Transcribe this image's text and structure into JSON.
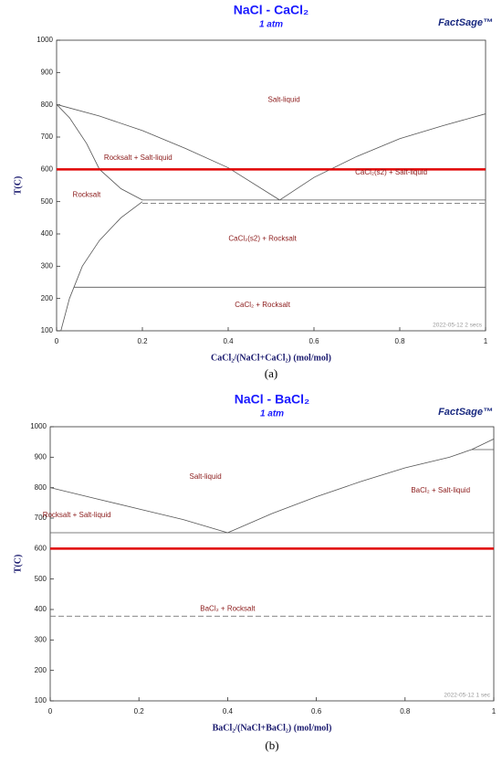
{
  "chart_data": [
    {
      "type": "line",
      "title": "NaCl - CaCl₂",
      "subtitle": "1 atm",
      "logo": "FactSage™",
      "xlabel": "CaCl₂/(NaCl+CaCl₂) (mol/mol)",
      "ylabel": "T(C)",
      "caption": "(a)",
      "timestamp": "2022-05-12  2 secs",
      "xlim": [
        0,
        1
      ],
      "ylim": [
        100,
        1000
      ],
      "xticks": [
        0,
        0.2,
        0.4,
        0.6,
        0.8,
        1
      ],
      "yticks": [
        100,
        200,
        300,
        400,
        500,
        600,
        700,
        800,
        900,
        1000
      ],
      "series": [
        {
          "color": "#555555",
          "style": "solid",
          "linewidth": 0.8,
          "x": [
            0,
            0.1,
            0.2,
            0.3,
            0.4,
            0.52
          ],
          "values": [
            801,
            765,
            720,
            665,
            605,
            505
          ]
        },
        {
          "color": "#555555",
          "style": "solid",
          "linewidth": 0.8,
          "x": [
            0.52,
            0.6,
            0.7,
            0.8,
            0.9,
            1
          ],
          "values": [
            505,
            575,
            640,
            695,
            735,
            772
          ]
        },
        {
          "color": "#555555",
          "style": "solid",
          "linewidth": 0.8,
          "x": [
            0,
            0.03,
            0.07,
            0.1,
            0.15,
            0.2
          ],
          "values": [
            801,
            760,
            680,
            600,
            540,
            505
          ]
        },
        {
          "color": "#555555",
          "style": "solid",
          "linewidth": 0.8,
          "x": [
            0.01,
            0.03,
            0.06,
            0.1,
            0.15,
            0.2
          ],
          "values": [
            100,
            200,
            300,
            380,
            450,
            500
          ]
        },
        {
          "color": "#555555",
          "style": "solid",
          "linewidth": 0.8,
          "x": [
            0.2,
            1
          ],
          "values": [
            505,
            505
          ]
        },
        {
          "color": "#777777",
          "style": "dashed",
          "linewidth": 0.8,
          "x": [
            0.2,
            1
          ],
          "values": [
            495,
            495
          ]
        },
        {
          "color": "#555555",
          "style": "solid",
          "linewidth": 0.8,
          "x": [
            0.04,
            1
          ],
          "values": [
            235,
            235
          ]
        },
        {
          "color": "#e00000",
          "style": "solid",
          "linewidth": 2.5,
          "x": [
            0,
            1
          ],
          "values": [
            600,
            600
          ]
        }
      ],
      "annotations": [
        "Salt-liquid",
        "Rocksalt + Salt-liquid",
        "CaCl₂(s2) + Salt-liquid",
        "Rocksalt",
        "CaCl₂(s2) + Rocksalt",
        "CaCl₂ + Rocksalt"
      ]
    },
    {
      "type": "line",
      "title": "NaCl - BaCl₂",
      "subtitle": "1 atm",
      "logo": "FactSage™",
      "xlabel": "BaCl₂/(NaCl+BaCl₂) (mol/mol)",
      "ylabel": "T(C)",
      "caption": "(b)",
      "timestamp": "2022-05-12  1 sec",
      "xlim": [
        0,
        1
      ],
      "ylim": [
        100,
        1000
      ],
      "xticks": [
        0,
        0.2,
        0.4,
        0.6,
        0.8,
        1
      ],
      "yticks": [
        100,
        200,
        300,
        400,
        500,
        600,
        700,
        800,
        900,
        1000
      ],
      "series": [
        {
          "color": "#555555",
          "style": "solid",
          "linewidth": 0.8,
          "x": [
            0,
            0.1,
            0.2,
            0.3,
            0.4
          ],
          "values": [
            800,
            765,
            730,
            695,
            652
          ]
        },
        {
          "color": "#555555",
          "style": "solid",
          "linewidth": 0.8,
          "x": [
            0.4,
            0.5,
            0.6,
            0.7,
            0.8,
            0.9,
            0.95,
            1
          ],
          "values": [
            652,
            715,
            770,
            820,
            865,
            900,
            925,
            960
          ]
        },
        {
          "color": "#555555",
          "style": "solid",
          "linewidth": 0.8,
          "x": [
            0,
            1
          ],
          "values": [
            652,
            652
          ]
        },
        {
          "color": "#555555",
          "style": "solid",
          "linewidth": 0.8,
          "x": [
            0.95,
            1
          ],
          "values": [
            925,
            925
          ]
        },
        {
          "color": "#777777",
          "style": "dashed",
          "linewidth": 0.8,
          "x": [
            0,
            1
          ],
          "values": [
            378,
            378
          ]
        },
        {
          "color": "#e00000",
          "style": "solid",
          "linewidth": 2.5,
          "x": [
            0,
            1
          ],
          "values": [
            600,
            600
          ]
        }
      ],
      "annotations": [
        "Salt-liquid",
        "BaCl₂ + Salt-liquid",
        "Rocksalt + Salt-liquid",
        "BaCl₂ + Rocksalt"
      ]
    }
  ]
}
